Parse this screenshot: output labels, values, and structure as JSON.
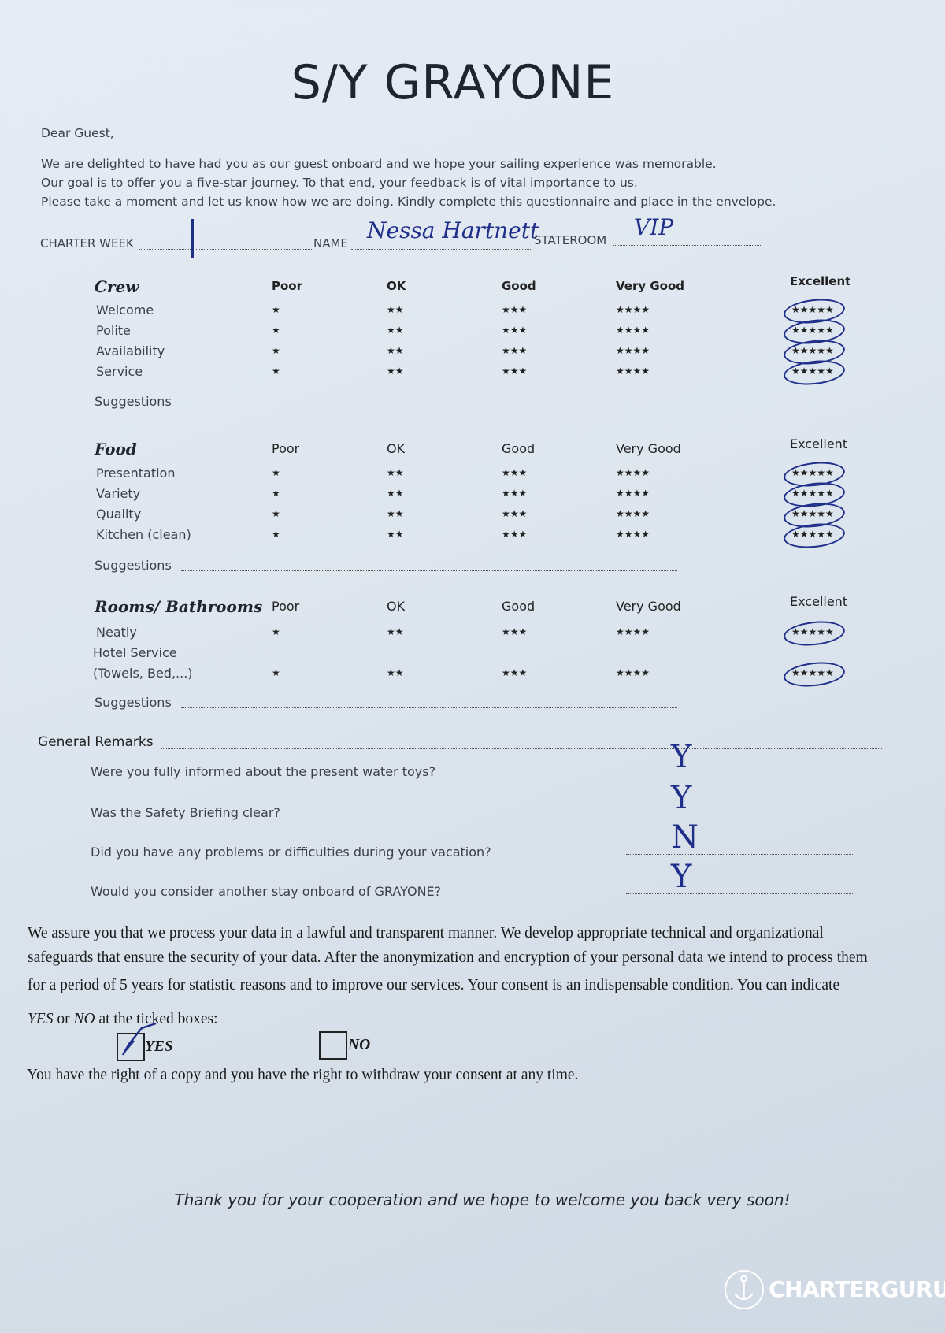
{
  "title": "S/Y GRAYONE",
  "greeting": "Dear Guest,",
  "intro": [
    "We are delighted to have had you as our guest onboard and we hope your sailing experience was memorable.",
    "Our goal is to offer you a five-star journey. To that end, your feedback is of vital importance to us.",
    "Please take a moment and let us know how we are doing. Kindly complete this questionnaire and place in the envelope."
  ],
  "fields": {
    "charter_week_label": "CHARTER WEEK",
    "charter_week_value": "|",
    "name_label": "NAME",
    "name_value": "Nessa Hartnett",
    "stateroom_label": "STATEROOM",
    "stateroom_value": "VIP"
  },
  "scale": {
    "poor": "Poor",
    "ok": "OK",
    "good": "Good",
    "very_good": "Very Good",
    "excellent": "Excellent",
    "stars": [
      "★",
      "★★",
      "★★★",
      "★★★★",
      "★★★★★"
    ]
  },
  "sections": [
    {
      "title": "Crew",
      "items": [
        {
          "label": "Welcome",
          "rating": "Excellent"
        },
        {
          "label": "Polite",
          "rating": "Excellent"
        },
        {
          "label": "Availability",
          "rating": "Excellent"
        },
        {
          "label": "Service",
          "rating": "Excellent"
        }
      ],
      "suggestions_label": "Suggestions"
    },
    {
      "title": "Food",
      "items": [
        {
          "label": "Presentation",
          "rating": "Excellent"
        },
        {
          "label": "Variety",
          "rating": "Excellent"
        },
        {
          "label": "Quality",
          "rating": "Excellent"
        },
        {
          "label": "Kitchen (clean)",
          "rating": "Excellent"
        }
      ],
      "suggestions_label": "Suggestions"
    },
    {
      "title": "Rooms/ Bathrooms",
      "items": [
        {
          "label": "Neatly",
          "rating": "Excellent"
        },
        {
          "label": "Hotel Service",
          "label2": "(Towels, Bed,...)",
          "rating": "Excellent"
        }
      ],
      "suggestions_label": "Suggestions"
    }
  ],
  "general": {
    "label": "General Remarks",
    "questions": [
      {
        "q": "Were you fully informed about the present water toys?",
        "a": "Y"
      },
      {
        "q": "Was the Safety Briefing clear?",
        "a": "Y"
      },
      {
        "q": "Did you have any problems or difficulties during your vacation?",
        "a": "N"
      },
      {
        "q": "Would you consider another stay onboard of GRAYONE?",
        "a": "Y"
      }
    ]
  },
  "privacy": {
    "lines": [
      "We assure you that we process your data in a lawful and transparent manner. We develop appropriate technical and organizational",
      "safeguards that ensure the security of your data. After the anonymization and encryption of your personal data we intend to process them",
      "for a period of 5 years for statistic reasons and to improve our services. Your consent is an indispensable condition. You can indicate"
    ],
    "line4_yes": "YES",
    "line4_or": " or ",
    "line4_no": "NO",
    "line4_rest": " at the ticked boxes:",
    "yes_label": "YES",
    "no_label": "NO",
    "yes_checked": true,
    "no_checked": false,
    "withdraw": "You have the right of a copy and you have the right to withdraw your consent at any time."
  },
  "thanks": "Thank you for your cooperation and we hope to welcome you back very soon!",
  "watermark": "CHARTERGURU",
  "colors": {
    "ink": "#1f2f8a",
    "paper": "#e1e8f0"
  }
}
